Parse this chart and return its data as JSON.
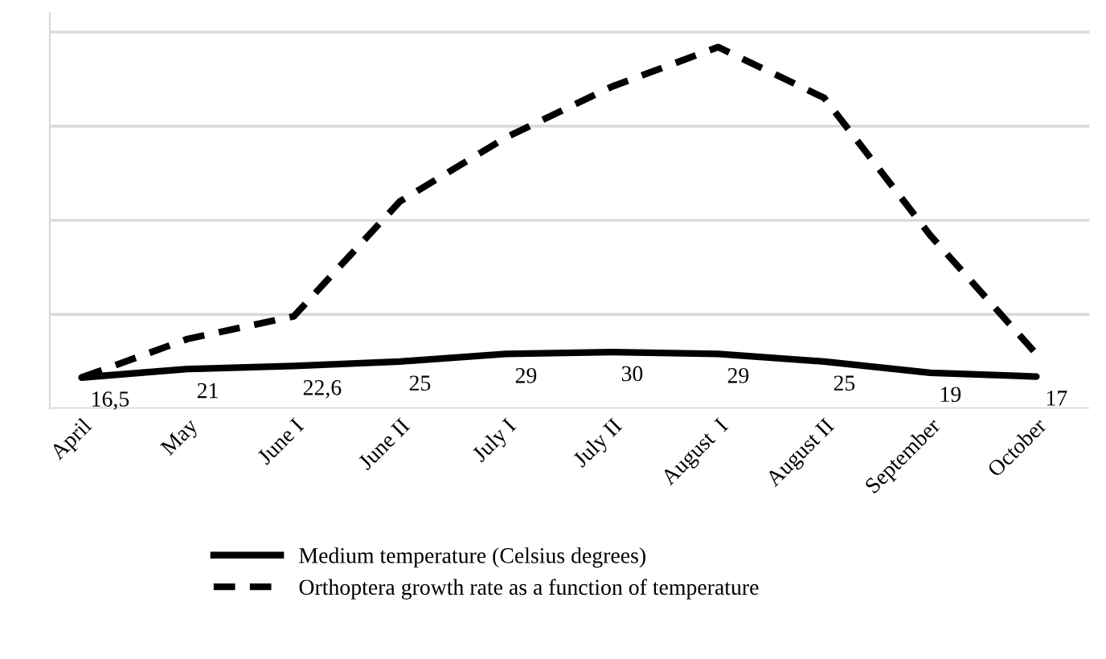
{
  "chart_data": {
    "type": "line",
    "categories": [
      "April",
      "May",
      "June I",
      "June II",
      "July I",
      "July II",
      "August  I",
      "August II",
      "September",
      "October"
    ],
    "series": [
      {
        "name": "Medium temperature (Celsius degrees)",
        "color": "#000000",
        "line_style": "solid",
        "values": [
          16.5,
          21,
          22.6,
          25,
          29,
          30,
          29,
          25,
          19,
          17
        ],
        "value_labels": [
          "16,5",
          "21",
          "22,6",
          "25",
          "29",
          "30",
          "29",
          "25",
          "19",
          "17"
        ]
      },
      {
        "name": "Orthoptera growth rate as a function of temperature",
        "color": "#000000",
        "line_style": "dashed",
        "values": [
          16.5,
          37,
          49,
          110,
          144,
          171,
          192,
          165,
          92,
          29
        ]
      }
    ],
    "ylim": [
      0,
      210
    ],
    "tick_labels": "x",
    "grid": "y",
    "legend": "bottom",
    "marker": "none"
  }
}
